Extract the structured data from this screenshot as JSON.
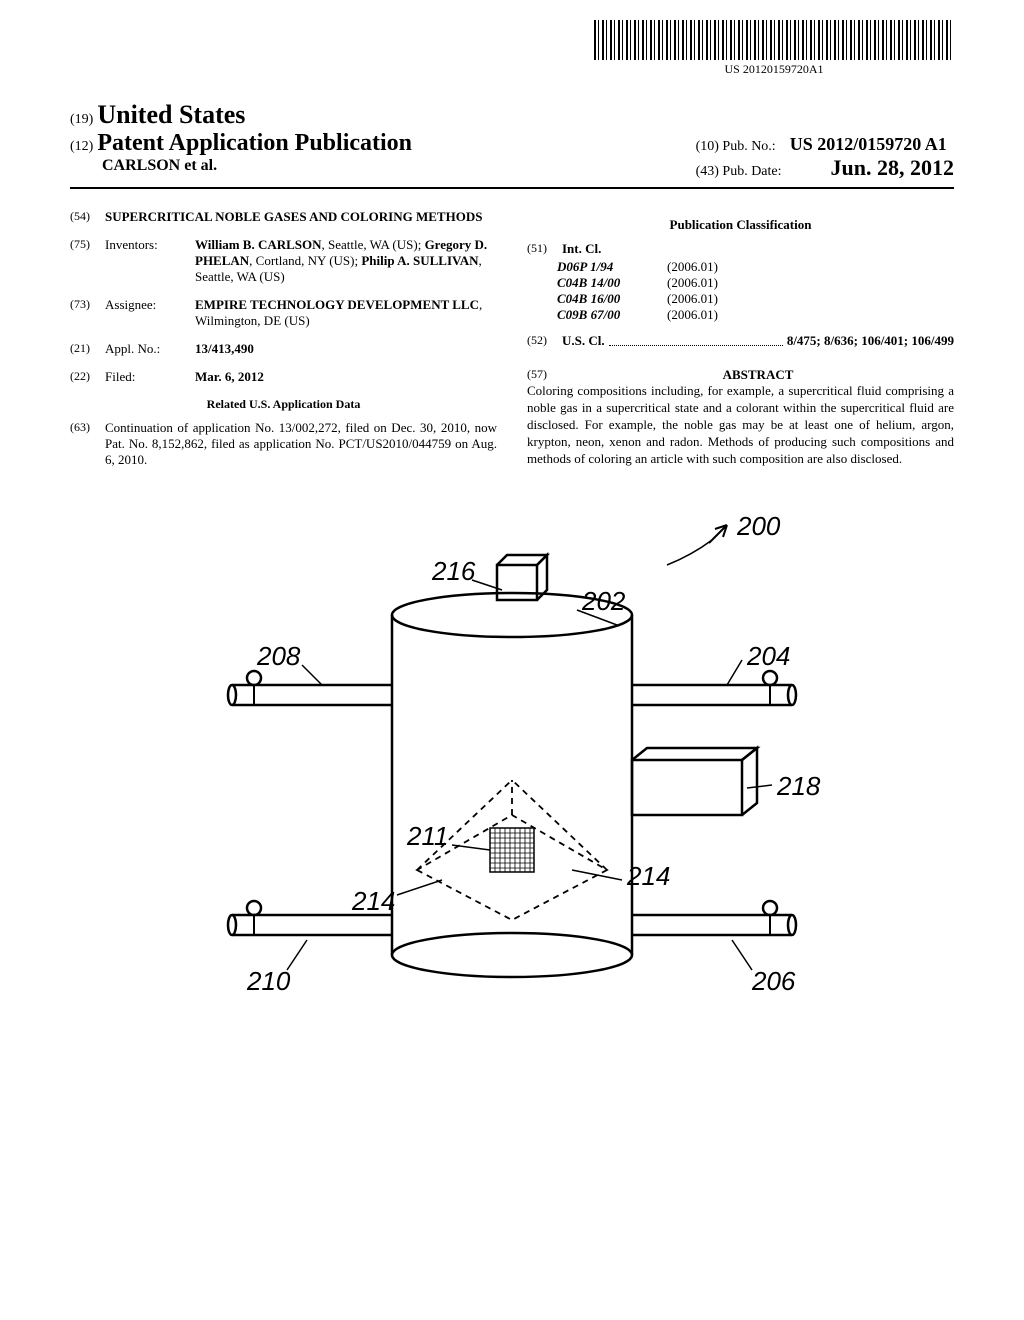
{
  "barcode_text": "US 20120159720A1",
  "country_code": "(19)",
  "country": "United States",
  "pub_type_code": "(12)",
  "pub_type": "Patent Application Publication",
  "inventors_short": "CARLSON et al.",
  "pub_no_code": "(10)",
  "pub_no_label": "Pub. No.:",
  "pub_no": "US 2012/0159720 A1",
  "pub_date_code": "(43)",
  "pub_date_label": "Pub. Date:",
  "pub_date": "Jun. 28, 2012",
  "title_code": "(54)",
  "title": "SUPERCRITICAL NOBLE GASES AND COLORING METHODS",
  "inventors_code": "(75)",
  "inventors_label": "Inventors:",
  "inventors_html": "William B. CARLSON|, Seattle, WA (US); |Gregory D. PHELAN|, Cortland, NY (US); |Philip A. SULLIVAN|, Seattle, WA (US)",
  "assignee_code": "(73)",
  "assignee_label": "Assignee:",
  "assignee_name": "EMPIRE TECHNOLOGY DEVELOPMENT LLC",
  "assignee_loc": ", Wilmington, DE (US)",
  "appl_no_code": "(21)",
  "appl_no_label": "Appl. No.:",
  "appl_no": "13/413,490",
  "filed_code": "(22)",
  "filed_label": "Filed:",
  "filed_date": "Mar. 6, 2012",
  "related_header": "Related U.S. Application Data",
  "related_code": "(63)",
  "related_text": "Continuation of application No. 13/002,272, filed on Dec. 30, 2010, now Pat. No. 8,152,862, filed as application No. PCT/US2010/044759 on Aug. 6, 2010.",
  "classification_header": "Publication Classification",
  "intcl_code": "(51)",
  "intcl_label": "Int. Cl.",
  "intcl": [
    {
      "code": "D06P 1/94",
      "ver": "(2006.01)"
    },
    {
      "code": "C04B 14/00",
      "ver": "(2006.01)"
    },
    {
      "code": "C04B 16/00",
      "ver": "(2006.01)"
    },
    {
      "code": "C09B 67/00",
      "ver": "(2006.01)"
    }
  ],
  "uscl_code": "(52)",
  "uscl_label": "U.S. Cl.",
  "uscl_value": "8/475; 8/636; 106/401; 106/499",
  "abstract_code": "(57)",
  "abstract_label": "ABSTRACT",
  "abstract_text": "Coloring compositions including, for example, a supercritical fluid comprising a noble gas in a supercritical state and a colorant within the supercritical fluid are disclosed. For example, the noble gas may be at least one of helium, argon, krypton, neon, xenon and radon. Methods of producing such compositions and methods of coloring an article with such composition are also disclosed.",
  "figure": {
    "labels": {
      "200": "200",
      "202": "202",
      "204": "204",
      "206": "206",
      "208": "208",
      "210": "210",
      "211": "211",
      "214a": "214",
      "214b": "214",
      "216": "216",
      "218": "218"
    }
  }
}
